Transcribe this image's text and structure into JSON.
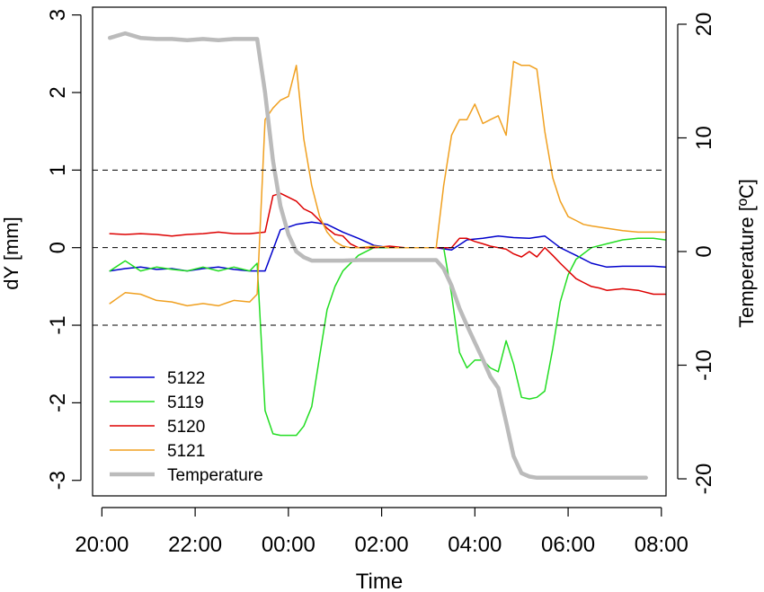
{
  "chart_data": {
    "type": "line",
    "xlabel": "Time",
    "ylabel_left": "dY [mm]",
    "ylabel_right": "Temperature [ºC]",
    "x_unit": "hours since 20:00",
    "xlim": [
      -0.2,
      12.1
    ],
    "ylim_left": [
      -3.2,
      3.1
    ],
    "ylim_right": [
      -21.5,
      21.5
    ],
    "x_ticks": [
      0,
      2,
      4,
      6,
      8,
      10,
      12
    ],
    "x_tick_labels": [
      "20:00",
      "22:00",
      "00:00",
      "02:00",
      "04:00",
      "06:00",
      "08:00"
    ],
    "y_ticks_left": [
      -3,
      -2,
      -1,
      0,
      1,
      2,
      3
    ],
    "y_tick_labels_left": [
      "-3",
      "-2",
      "-1",
      "0",
      "1",
      "2",
      "3"
    ],
    "y_ticks_right": [
      -20,
      -10,
      0,
      10,
      20
    ],
    "y_tick_labels_right": [
      "-20",
      "-10",
      "0",
      "10",
      "20"
    ],
    "reference_lines_left": [
      1,
      0,
      -1
    ],
    "grid": false,
    "legend_position": "bottom-left",
    "series": [
      {
        "name": "5122",
        "axis": "left",
        "color": "#0000CC",
        "x": [
          0.17,
          0.5,
          0.83,
          1.17,
          1.5,
          1.83,
          2.17,
          2.5,
          2.83,
          3.17,
          3.5,
          3.83,
          4.17,
          4.5,
          4.83,
          5.17,
          5.5,
          5.83,
          6.17,
          6.5,
          6.83,
          7.17,
          7.5,
          7.83,
          8.17,
          8.5,
          8.83,
          9.17,
          9.5,
          9.83,
          10.17,
          10.5,
          10.83,
          11.17,
          11.5,
          11.83,
          12.08
        ],
        "y": [
          -0.3,
          -0.27,
          -0.25,
          -0.28,
          -0.27,
          -0.3,
          -0.27,
          -0.25,
          -0.28,
          -0.3,
          -0.3,
          0.23,
          0.3,
          0.33,
          0.3,
          0.2,
          0.12,
          0.03,
          0.0,
          0.0,
          0.0,
          0.0,
          -0.03,
          0.1,
          0.12,
          0.15,
          0.13,
          0.12,
          0.15,
          0.0,
          -0.1,
          -0.2,
          -0.25,
          -0.24,
          -0.24,
          -0.24,
          -0.25
        ]
      },
      {
        "name": "5119",
        "axis": "left",
        "color": "#22DD22",
        "x": [
          0.17,
          0.5,
          0.83,
          1.17,
          1.5,
          1.83,
          2.17,
          2.5,
          2.83,
          3.17,
          3.33,
          3.5,
          3.67,
          3.83,
          4.0,
          4.17,
          4.33,
          4.5,
          4.67,
          4.83,
          5.0,
          5.17,
          5.5,
          5.83,
          6.17,
          6.5,
          6.83,
          7.17,
          7.33,
          7.5,
          7.67,
          7.83,
          8.0,
          8.17,
          8.33,
          8.5,
          8.67,
          8.83,
          9.0,
          9.17,
          9.33,
          9.5,
          9.67,
          9.83,
          10.0,
          10.17,
          10.5,
          10.83,
          11.17,
          11.5,
          11.83,
          12.08
        ],
        "y": [
          -0.3,
          -0.17,
          -0.3,
          -0.25,
          -0.28,
          -0.3,
          -0.25,
          -0.3,
          -0.25,
          -0.3,
          -0.2,
          -2.1,
          -2.4,
          -2.42,
          -2.42,
          -2.42,
          -2.3,
          -2.05,
          -1.4,
          -0.8,
          -0.5,
          -0.3,
          -0.1,
          0.0,
          0.0,
          0.0,
          0.0,
          0.0,
          0.0,
          -0.6,
          -1.35,
          -1.55,
          -1.45,
          -1.45,
          -1.55,
          -1.6,
          -1.2,
          -1.5,
          -1.93,
          -1.95,
          -1.93,
          -1.85,
          -1.3,
          -0.7,
          -0.35,
          -0.15,
          0.0,
          0.05,
          0.1,
          0.12,
          0.12,
          0.1
        ]
      },
      {
        "name": "5120",
        "axis": "left",
        "color": "#DD0000",
        "x": [
          0.17,
          0.5,
          0.83,
          1.17,
          1.5,
          1.83,
          2.17,
          2.5,
          2.83,
          3.17,
          3.5,
          3.67,
          3.83,
          4.0,
          4.17,
          4.33,
          4.5,
          4.67,
          4.83,
          5.0,
          5.17,
          5.33,
          5.5,
          5.83,
          6.17,
          6.5,
          6.83,
          7.17,
          7.5,
          7.67,
          7.83,
          8.0,
          8.17,
          8.33,
          8.5,
          8.67,
          8.83,
          9.0,
          9.17,
          9.33,
          9.5,
          9.67,
          9.83,
          10.0,
          10.17,
          10.33,
          10.5,
          10.67,
          10.83,
          11.17,
          11.5,
          11.83,
          12.08
        ],
        "y": [
          0.18,
          0.17,
          0.18,
          0.17,
          0.15,
          0.17,
          0.18,
          0.2,
          0.18,
          0.18,
          0.2,
          0.67,
          0.7,
          0.65,
          0.6,
          0.5,
          0.45,
          0.35,
          0.25,
          0.17,
          0.15,
          0.05,
          0.0,
          0.0,
          0.02,
          0.0,
          0.0,
          0.0,
          0.0,
          0.12,
          0.12,
          0.08,
          0.05,
          0.02,
          0.0,
          -0.02,
          -0.08,
          -0.12,
          -0.05,
          -0.12,
          0.0,
          -0.1,
          -0.2,
          -0.3,
          -0.4,
          -0.45,
          -0.5,
          -0.52,
          -0.55,
          -0.53,
          -0.55,
          -0.6,
          -0.6
        ]
      },
      {
        "name": "5121",
        "axis": "left",
        "color": "#F0A020",
        "x": [
          0.17,
          0.5,
          0.83,
          1.17,
          1.5,
          1.83,
          2.17,
          2.5,
          2.83,
          3.17,
          3.33,
          3.5,
          3.67,
          3.83,
          4.0,
          4.17,
          4.33,
          4.5,
          4.67,
          4.83,
          5.0,
          5.17,
          5.33,
          5.5,
          5.83,
          6.17,
          6.5,
          6.83,
          7.17,
          7.33,
          7.5,
          7.67,
          7.83,
          8.0,
          8.17,
          8.33,
          8.5,
          8.67,
          8.83,
          9.0,
          9.17,
          9.33,
          9.5,
          9.67,
          9.83,
          10.0,
          10.17,
          10.33,
          10.5,
          10.83,
          11.17,
          11.5,
          11.83,
          12.08
        ],
        "y": [
          -0.72,
          -0.58,
          -0.6,
          -0.68,
          -0.7,
          -0.75,
          -0.72,
          -0.75,
          -0.68,
          -0.7,
          -0.6,
          1.65,
          1.8,
          1.9,
          1.95,
          2.35,
          1.4,
          0.8,
          0.4,
          0.2,
          0.08,
          0.02,
          0.0,
          0.0,
          0.02,
          0.0,
          0.0,
          0.0,
          0.0,
          0.8,
          1.45,
          1.65,
          1.65,
          1.85,
          1.6,
          1.65,
          1.7,
          1.45,
          2.4,
          2.35,
          2.35,
          2.3,
          1.5,
          0.9,
          0.6,
          0.4,
          0.35,
          0.3,
          0.28,
          0.25,
          0.22,
          0.2,
          0.2,
          0.2
        ]
      },
      {
        "name": "Temperature",
        "axis": "right",
        "color": "#BBBBBB",
        "x": [
          0.17,
          0.5,
          0.83,
          1.17,
          1.5,
          1.83,
          2.17,
          2.5,
          2.83,
          3.17,
          3.33,
          3.5,
          3.67,
          3.83,
          4.0,
          4.17,
          4.33,
          4.5,
          4.67,
          4.83,
          5.17,
          5.5,
          5.83,
          6.17,
          6.5,
          6.83,
          7.17,
          7.33,
          7.5,
          7.67,
          7.83,
          8.0,
          8.17,
          8.33,
          8.5,
          8.67,
          8.83,
          9.0,
          9.17,
          9.33,
          9.5,
          9.83,
          10.17,
          10.5,
          10.83,
          11.17,
          11.5,
          11.67
        ],
        "y": [
          18.8,
          19.2,
          18.8,
          18.7,
          18.7,
          18.6,
          18.7,
          18.6,
          18.7,
          18.7,
          18.7,
          14.0,
          8.0,
          4.0,
          1.5,
          0.0,
          -0.5,
          -0.8,
          -0.8,
          -0.8,
          -0.8,
          -0.75,
          -0.75,
          -0.75,
          -0.75,
          -0.75,
          -0.75,
          -1.5,
          -3.0,
          -5.0,
          -6.5,
          -8.0,
          -9.5,
          -11.0,
          -12.0,
          -15.0,
          -18.0,
          -19.5,
          -19.8,
          -19.9,
          -19.9,
          -19.9,
          -19.9,
          -19.9,
          -19.9,
          -19.9,
          -19.9,
          -19.9
        ]
      }
    ]
  }
}
